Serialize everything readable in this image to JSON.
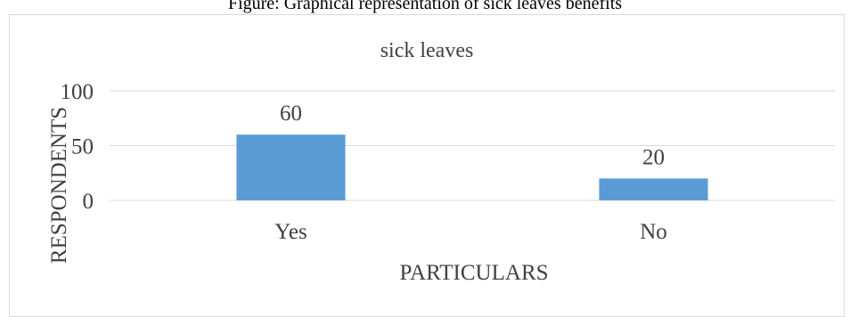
{
  "caption": "Figure: Graphical representation of sick leaves benefits",
  "chart_data": {
    "type": "bar",
    "title": "sick leaves",
    "xlabel": "PARTICULARS",
    "ylabel": "RESPONDENTS",
    "categories": [
      "Yes",
      "No"
    ],
    "values": [
      60,
      20
    ],
    "data_labels": [
      "60",
      "20"
    ],
    "y_ticks": [
      "0",
      "50",
      "100"
    ],
    "y_tick_values": [
      0,
      50,
      100
    ],
    "ylim": [
      0,
      100
    ],
    "grid": true,
    "legend": "none",
    "bar_color": "#5b9bd5",
    "grid_color": "#d9d9d9"
  }
}
